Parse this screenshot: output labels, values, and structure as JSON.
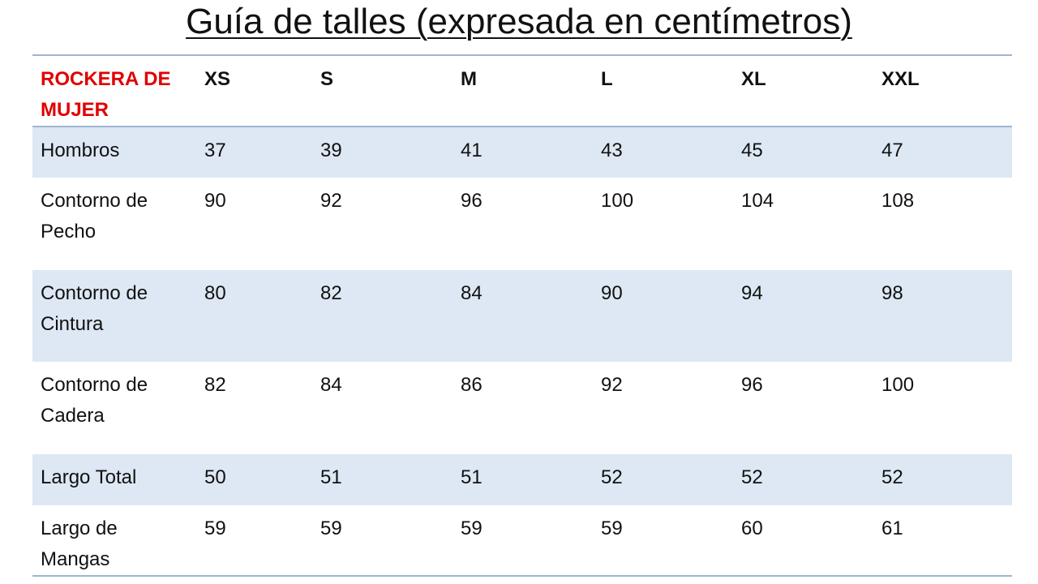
{
  "header": {
    "title": "Guía de talles (expresada en centímetros)"
  },
  "table": {
    "columns": [
      "ROCKERA DE MUJER",
      "XS",
      "S",
      "M",
      "L",
      "XL",
      "XXL"
    ],
    "rows": [
      [
        "Hombros",
        37,
        39,
        41,
        43,
        45,
        47
      ],
      [
        "Contorno de Pecho",
        90,
        92,
        96,
        100,
        104,
        108
      ],
      [
        "Contorno de Cintura",
        80,
        82,
        84,
        90,
        94,
        98
      ],
      [
        "Contorno de Cadera",
        82,
        84,
        86,
        92,
        96,
        100
      ],
      [
        "Largo Total",
        50,
        51,
        51,
        52,
        52,
        52
      ],
      [
        "Largo de Mangas",
        59,
        59,
        59,
        59,
        60,
        61
      ]
    ]
  }
}
